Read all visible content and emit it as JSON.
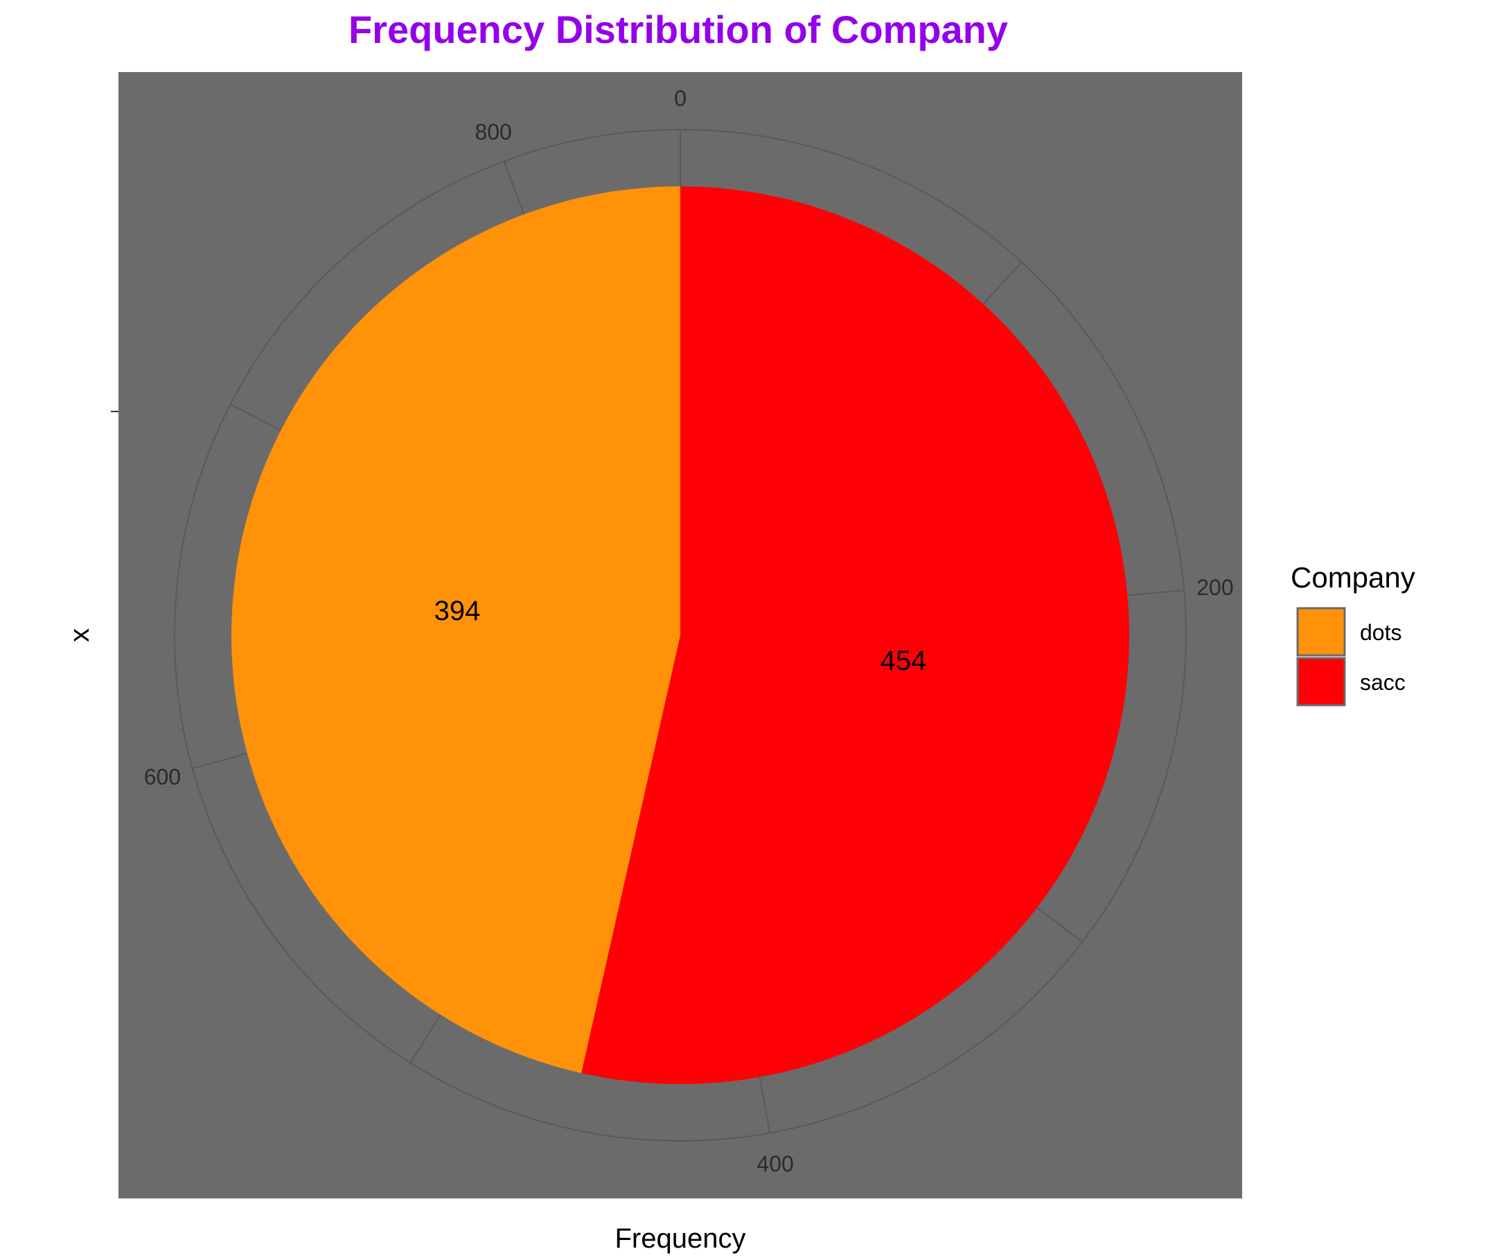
{
  "chart_data": {
    "type": "pie",
    "title": "Frequency Distribution of Company",
    "xlabel": "Frequency",
    "ylabel": "x",
    "categories": [
      "dots",
      "sacc"
    ],
    "values": [
      394,
      454
    ],
    "data_labels": [
      "394",
      "454"
    ],
    "legend": {
      "title": "Company",
      "position": "right",
      "entries": [
        "dots",
        "sacc"
      ]
    },
    "theta_axis": {
      "range": [
        0,
        848
      ],
      "ticks": [
        0,
        200,
        400,
        600,
        800
      ],
      "tick_labels": [
        "0",
        "200",
        "400",
        "600",
        "800"
      ],
      "direction": "clockwise",
      "start": "top"
    },
    "grid": true
  },
  "colors": {
    "title": "#9400ea",
    "panel_background": "#6b6b6b",
    "grid": "#595959",
    "dots": "#ff9209",
    "sacc": "#ff0006",
    "legend_key_border": "#6b6b6b"
  }
}
